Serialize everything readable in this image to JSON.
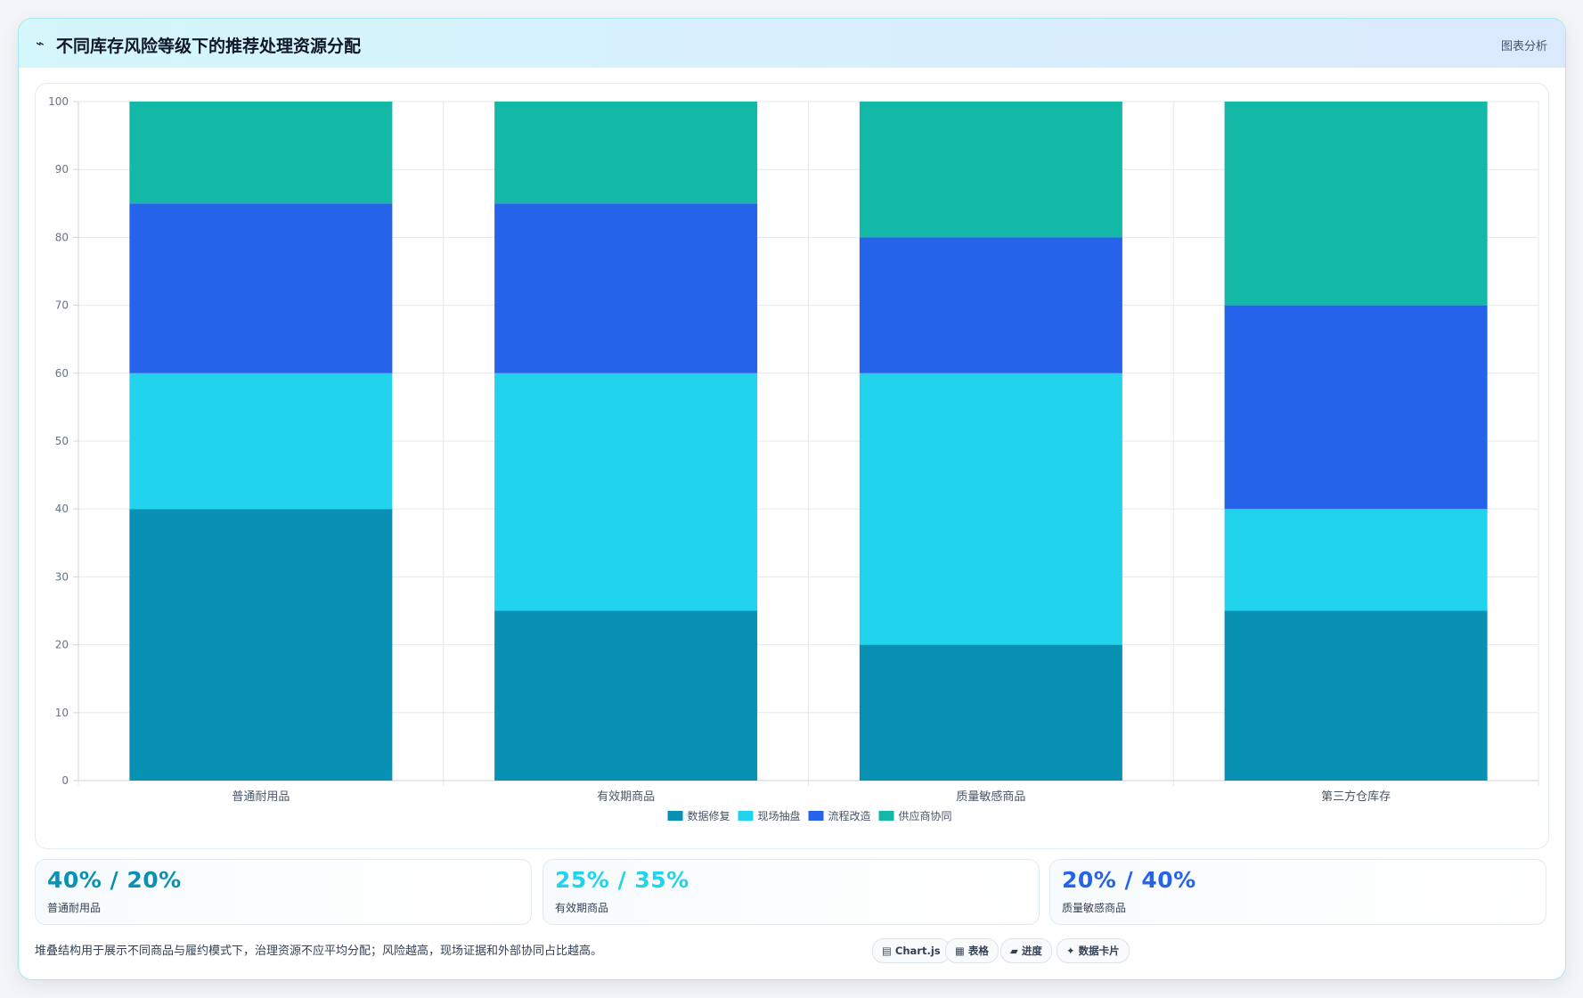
{
  "header": {
    "icon": "⌁",
    "title": "不同库存风险等级下的推荐处理资源分配",
    "tag": "图表分析"
  },
  "chart_data": {
    "type": "bar",
    "stacked": true,
    "categories": [
      "普通耐用品",
      "有效期商品",
      "质量敏感商品",
      "第三方仓库存"
    ],
    "series": [
      {
        "name": "数据修复",
        "color": "#0891b2",
        "values": [
          40,
          25,
          20,
          25
        ]
      },
      {
        "name": "现场抽盘",
        "color": "#22d3ee",
        "values": [
          20,
          35,
          40,
          15
        ]
      },
      {
        "name": "流程改造",
        "color": "#2563eb",
        "values": [
          25,
          25,
          20,
          30
        ]
      },
      {
        "name": "供应商协同",
        "color": "#14b8a6",
        "values": [
          15,
          15,
          20,
          30
        ]
      }
    ],
    "ylim": [
      0,
      100
    ],
    "yticks": [
      0,
      10,
      20,
      30,
      40,
      50,
      60,
      70,
      80,
      90,
      100
    ],
    "grid": true,
    "legend_position": "bottom-center"
  },
  "stats": [
    {
      "value": "40% / 20%",
      "label": "普通耐用品",
      "color": "#0891b2"
    },
    {
      "value": "25% / 35%",
      "label": "有效期商品",
      "color": "#22d3ee"
    },
    {
      "value": "20% / 40%",
      "label": "质量敏感商品",
      "color": "#2563eb"
    }
  ],
  "note": "堆叠结构用于展示不同商品与履约模式下，治理资源不应平均分配；风险越高，现场证据和外部协同占比越高。",
  "chips": [
    {
      "icon": "▤",
      "label": "Chart.js"
    },
    {
      "icon": "▦",
      "label": "表格"
    },
    {
      "icon": "▰",
      "label": "进度"
    },
    {
      "icon": "✦",
      "label": "数据卡片"
    }
  ]
}
